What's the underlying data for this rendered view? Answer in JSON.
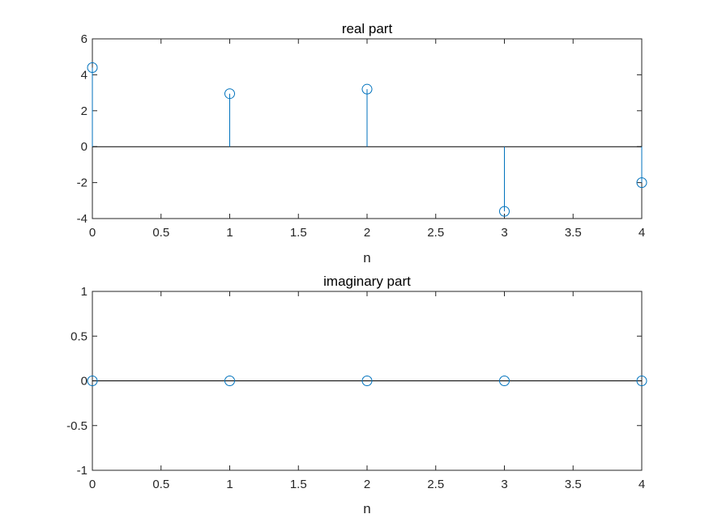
{
  "chart_data": [
    {
      "type": "stem",
      "title": "real part",
      "xlabel": "n",
      "ylabel": "",
      "xlim": [
        0,
        4
      ],
      "ylim": [
        -4,
        6
      ],
      "xticks": [
        "0",
        "0.5",
        "1",
        "1.5",
        "2",
        "2.5",
        "3",
        "3.5",
        "4"
      ],
      "yticks": [
        "-4",
        "-2",
        "0",
        "2",
        "4",
        "6"
      ],
      "grid": false,
      "baseline": 0,
      "color": "#0072BD",
      "series": [
        {
          "x": [
            0,
            1,
            2,
            3,
            4
          ],
          "y": [
            4.4,
            2.95,
            3.2,
            -3.6,
            -2.0
          ]
        }
      ]
    },
    {
      "type": "stem",
      "title": "imaginary part",
      "xlabel": "n",
      "ylabel": "",
      "xlim": [
        0,
        4
      ],
      "ylim": [
        -1,
        1
      ],
      "xticks": [
        "0",
        "0.5",
        "1",
        "1.5",
        "2",
        "2.5",
        "3",
        "3.5",
        "4"
      ],
      "yticks": [
        "-1",
        "-0.5",
        "0",
        "0.5",
        "1"
      ],
      "grid": false,
      "baseline": 0,
      "color": "#0072BD",
      "series": [
        {
          "x": [
            0,
            1,
            2,
            3,
            4
          ],
          "y": [
            0,
            0,
            0,
            0,
            0
          ]
        }
      ]
    }
  ]
}
